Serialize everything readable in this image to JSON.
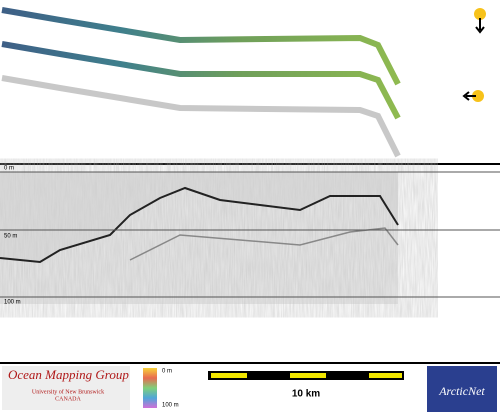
{
  "echogram": {
    "depth_labels": [
      "0 m",
      "50 m",
      "100 m"
    ]
  },
  "footer": {
    "logo_title": "Ocean Mapping Group",
    "logo_subtitle": "University of New Brunswick",
    "logo_country": "CANADA",
    "colorbar_labels": [
      "0 m",
      "100 m"
    ],
    "scale_label": "10 km",
    "partner_logo": "ArcticNet"
  }
}
